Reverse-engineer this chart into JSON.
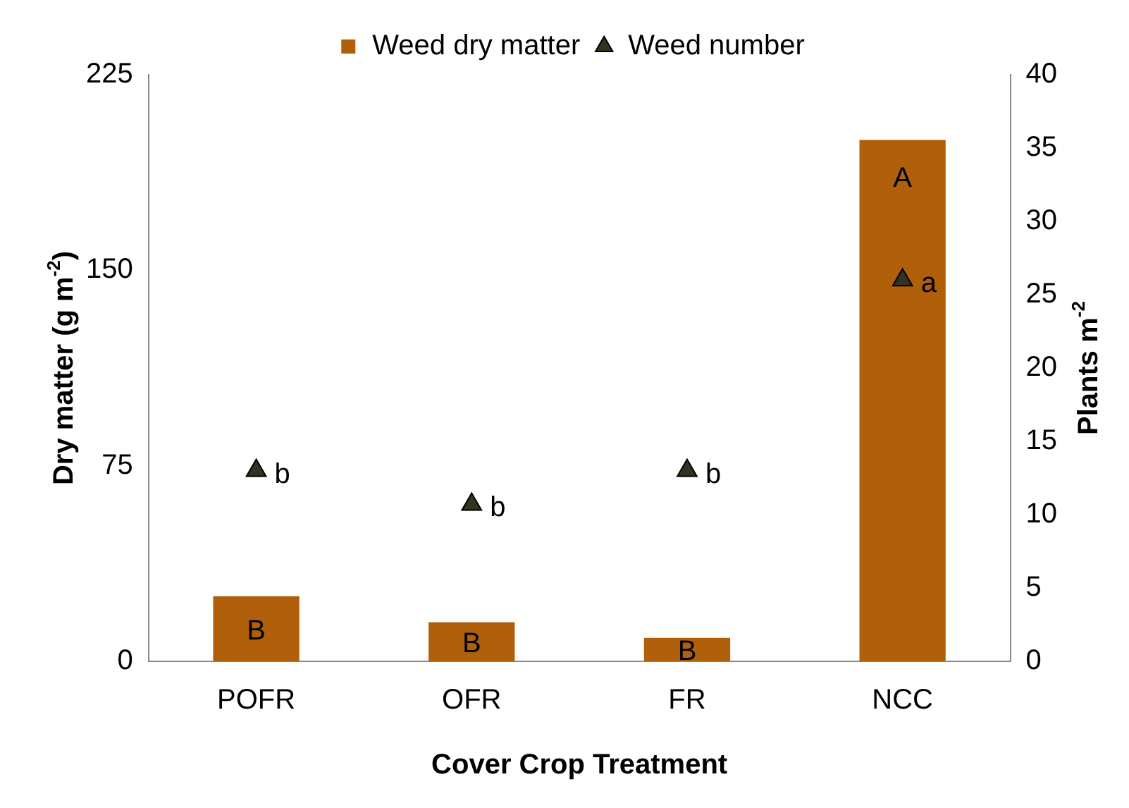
{
  "chart_data": {
    "type": "bar",
    "categories": [
      "POFR",
      "OFR",
      "FR",
      "NCC"
    ],
    "xlabel": "Cover Crop Treatment",
    "ylabel": "Dry matter (g m$^{-2}$)",
    "y2label": "Plants m$^{-2}$",
    "series": [
      {
        "name": "Weed dry matter",
        "color": "#b0600a",
        "values": [
          25,
          15,
          9,
          200
        ],
        "value_labels": [
          "B",
          "B",
          "B",
          "A"
        ]
      },
      {
        "name": "Weed number",
        "type": "scatter",
        "axis": "y2",
        "color": "#33331f",
        "values": [
          13,
          10.7,
          13,
          26
        ],
        "value_labels": [
          "b",
          "b",
          "b",
          "a"
        ]
      }
    ],
    "ylim": [
      0,
      225
    ],
    "yticks": [
      0,
      75,
      150,
      225
    ],
    "y2lim": [
      0,
      40
    ],
    "y2ticks": [
      0,
      5,
      10,
      15,
      20,
      25,
      30,
      35,
      40
    ],
    "marker": "triangle",
    "legend": "top",
    "grid": false
  }
}
